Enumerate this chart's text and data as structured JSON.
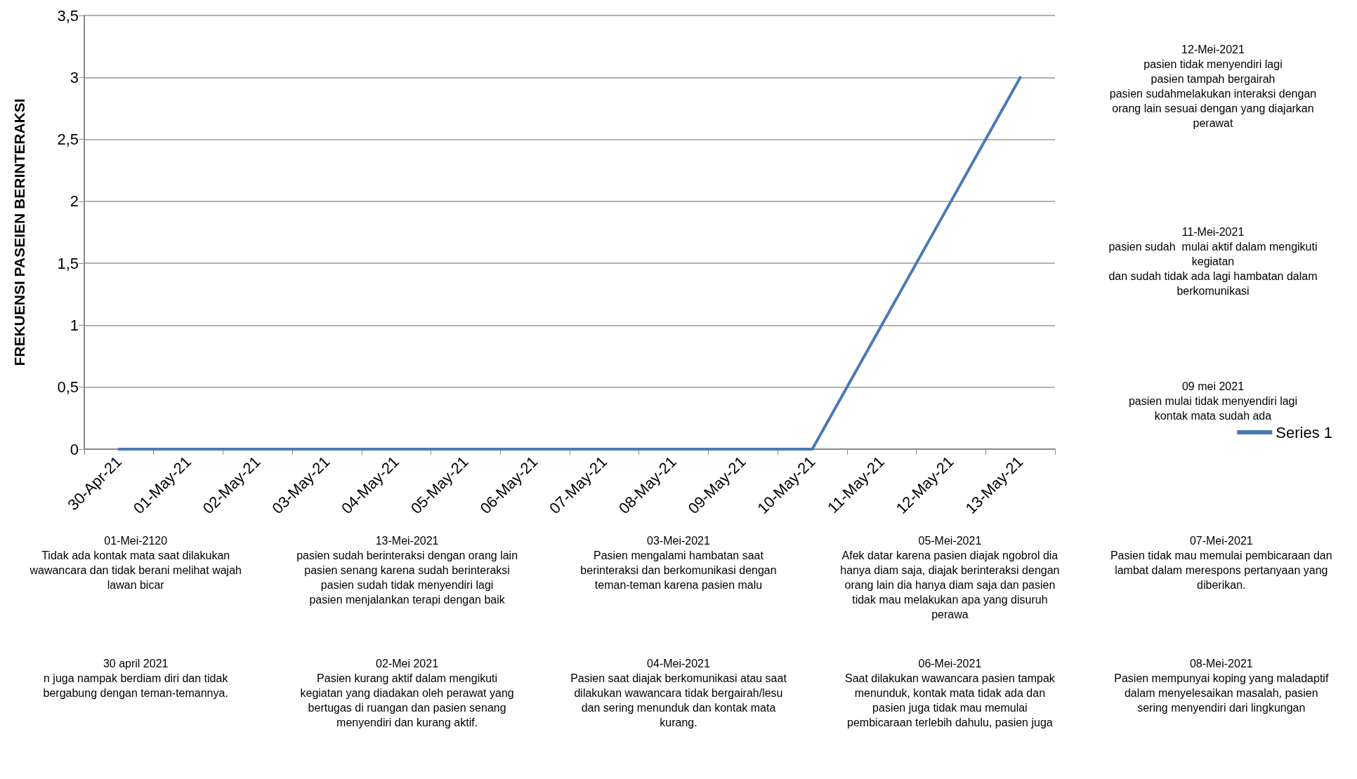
{
  "chart_data": {
    "type": "line",
    "ylabel": "FREKUENSI PASEIEN BERINTERAKSI",
    "categories": [
      "30-Apr-21",
      "01-May-21",
      "02-May-21",
      "03-May-21",
      "04-May-21",
      "05-May-21",
      "06-May-21",
      "07-May-21",
      "08-May-21",
      "09-May-21",
      "10-May-21",
      "11-May-21",
      "12-May-21",
      "13-May-21"
    ],
    "series": [
      {
        "name": "Series 1",
        "color": "#4a7ab4",
        "values": [
          0,
          0,
          0,
          0,
          0,
          0,
          0,
          0,
          0,
          0,
          0,
          1,
          2,
          3
        ]
      }
    ],
    "ylim": [
      0,
      3.5
    ],
    "yticks": [
      0,
      {
        "value": 0.5,
        "label": "0,5"
      },
      1,
      {
        "value": 1.5,
        "label": "1,5"
      },
      2,
      {
        "value": 2.5,
        "label": "2,5"
      },
      3,
      {
        "value": 3.5,
        "label": "3,5"
      }
    ],
    "grid": "y",
    "legend": "right",
    "marker": "none",
    "line_style": "solid",
    "annotations": [
      "12-Mei-2021\npasien tidak menyendiri lagi\npasien tampah bergairah\npasien sudahmelakukan interaksi dengan\norang lain sesuai dengan yang diajarkan\nperawat",
      "11-Mei-2021\npasien sudah  mulai aktif dalam mengikuti\nkegiatan\ndan sudah tidak ada lagi hambatan dalam\nberkomunikasi",
      "09 mei 2021\npasien mulai tidak menyendiri lagi\nkontak mata sudah ada",
      "01-Mei-2120\nTidak ada kontak mata saat dilakukan\nwawancara dan tidak berani melihat wajah\nlawan bicar",
      "13-Mei-2021\npasien sudah berinteraksi dengan orang lain\npasien senang karena sudah berinteraksi\npasien sudah tidak menyendiri lagi\npasien menjalankan terapi dengan baik",
      "03-Mei-2021\nPasien mengalami hambatan saat\nberinteraksi dan berkomunikasi dengan\nteman-teman karena pasien malu",
      "05-Mei-2021\nAfek datar karena pasien diajak ngobrol dia\nhanya diam saja, diajak berinteraksi dengan\norang lain dia hanya diam saja dan pasien\ntidak mau melakukan apa yang disuruh\nperawa",
      "07-Mei-2021\nPasien tidak mau memulai pembicaraan dan\nlambat dalam merespons pertanyaan yang\ndiberikan.",
      "30 april 2021\nn juga nampak berdiam diri dan tidak\nbergabung dengan teman-temannya.",
      "02-Mei 2021\nPasien kurang aktif dalam mengikuti\nkegiatan yang diadakan oleh perawat yang\nbertugas di ruangan dan pasien senang\nmenyendiri dan kurang aktif.",
      "04-Mei-2021\nPasien saat diajak berkomunikasi atau saat\ndilakukan wawancara tidak bergairah/lesu\ndan sering menunduk dan kontak mata\nkurang.",
      "06-Mei-2021\nSaat dilakukan wawancara pasien tampak\nmenunduk, kontak mata tidak ada dan\npasien juga tidak mau memulai\npembicaraan terlebih dahulu, pasien juga",
      "08-Mei-2021\nPasien mempunyai koping yang maladaptif\ndalam menyelesaikan masalah, pasien\nsering menyendiri dari lingkungan"
    ]
  }
}
